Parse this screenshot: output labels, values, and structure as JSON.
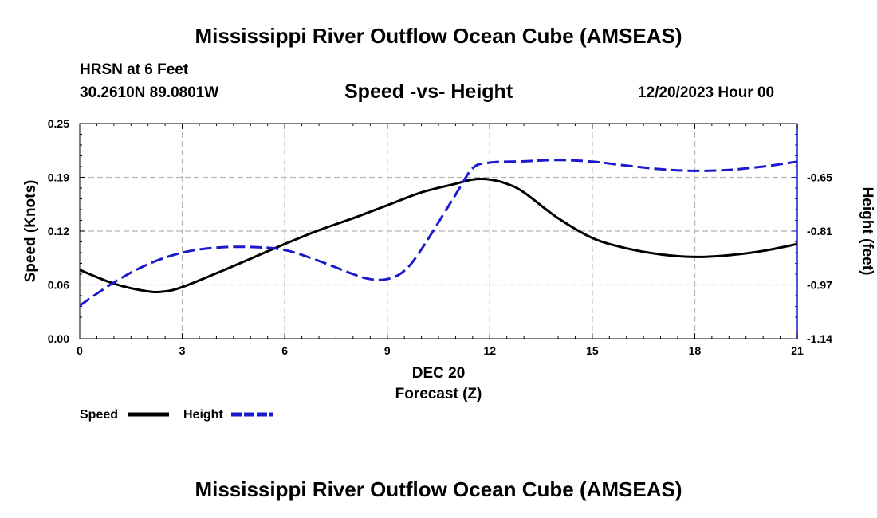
{
  "chart_data": {
    "type": "line",
    "title": "Mississippi River Outflow Ocean Cube (AMSEAS)",
    "station": "HRSN at 6 Feet",
    "coordinates": "30.2610N  89.0801W",
    "subtitle": "Speed -vs- Height",
    "datetime": "12/20/2023 Hour 00",
    "footer_title": "Mississippi River Outflow Ocean Cube (AMSEAS)",
    "xlabel_date": "DEC 20",
    "xlabel": "Forecast (Z)",
    "ylabel_left": "Speed (Knots)",
    "ylabel_right": "Height (feet)",
    "xlim": [
      0,
      21
    ],
    "ylim_left": [
      0.0,
      0.25
    ],
    "ylim_right": [
      -1.14,
      -0.49
    ],
    "x_ticks": [
      "0",
      "3",
      "6",
      "9",
      "12",
      "15",
      "18",
      "21"
    ],
    "y_ticks_left": [
      "0.00",
      "0.06",
      "0.12",
      "0.19",
      "0.25"
    ],
    "y_ticks_right": [
      "-1.14",
      "-0.97",
      "-0.81",
      "-0.65"
    ],
    "grid": true,
    "series": [
      {
        "name": "Speed",
        "axis": "left",
        "color": "#000000",
        "style": "solid",
        "x": [
          0,
          1,
          2,
          2.5,
          3,
          4,
          5,
          6,
          7,
          8,
          9,
          10,
          11,
          11.5,
          12,
          12.5,
          13,
          14,
          15,
          16,
          17,
          18,
          19,
          20,
          21
        ],
        "values": [
          0.08,
          0.064,
          0.055,
          0.055,
          0.06,
          0.076,
          0.093,
          0.11,
          0.126,
          0.14,
          0.155,
          0.17,
          0.18,
          0.185,
          0.185,
          0.18,
          0.17,
          0.14,
          0.117,
          0.105,
          0.098,
          0.095,
          0.097,
          0.102,
          0.11
        ]
      },
      {
        "name": "Height",
        "axis": "right",
        "color": "#1a1acc",
        "style": "dashed",
        "x": [
          0,
          1,
          2,
          3,
          4,
          5,
          6,
          7,
          8,
          8.5,
          9,
          9.5,
          10,
          11,
          11.5,
          12,
          13,
          14,
          15,
          16,
          17,
          18,
          19,
          20,
          21
        ],
        "values": [
          -1.04,
          -0.97,
          -0.915,
          -0.88,
          -0.865,
          -0.863,
          -0.872,
          -0.905,
          -0.945,
          -0.96,
          -0.96,
          -0.935,
          -0.87,
          -0.705,
          -0.625,
          -0.608,
          -0.604,
          -0.6,
          -0.605,
          -0.617,
          -0.628,
          -0.633,
          -0.63,
          -0.62,
          -0.605
        ]
      }
    ],
    "legend": [
      {
        "label": "Speed",
        "color": "#000000",
        "style": "solid"
      },
      {
        "label": "Height",
        "color": "#1a1acc",
        "style": "dashed"
      }
    ]
  }
}
